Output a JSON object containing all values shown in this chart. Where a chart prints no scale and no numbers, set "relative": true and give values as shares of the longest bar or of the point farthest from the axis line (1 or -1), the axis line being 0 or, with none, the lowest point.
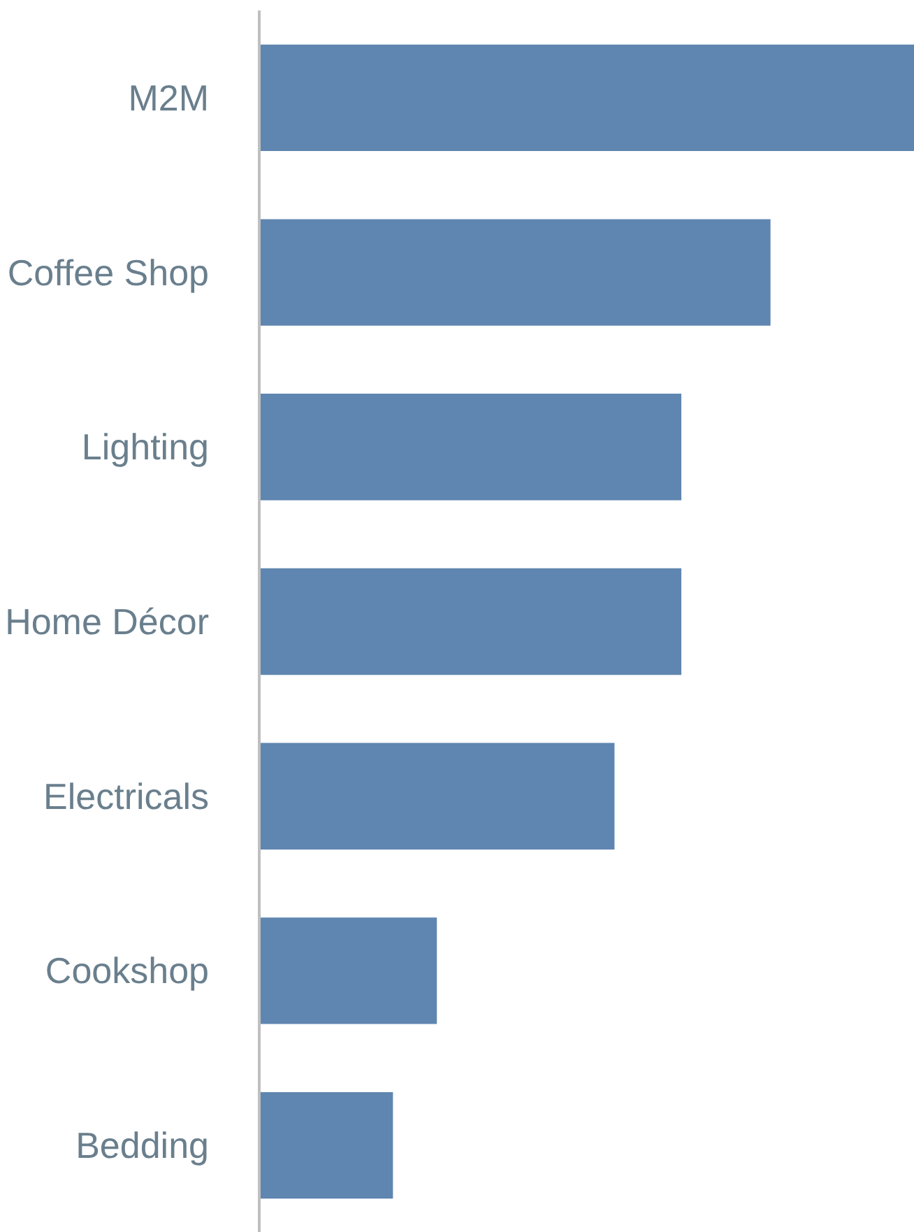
{
  "chart_data": {
    "type": "bar",
    "orientation": "horizontal",
    "relative": true,
    "categories": [
      "M2M",
      "Coffee Shop",
      "Lighting",
      "Home Décor",
      "Electricals",
      "Cookshop",
      "Bedding"
    ],
    "values": [
      1,
      0.78,
      0.644,
      0.644,
      0.542,
      0.271,
      0.204
    ],
    "color": "#5f86b0"
  }
}
